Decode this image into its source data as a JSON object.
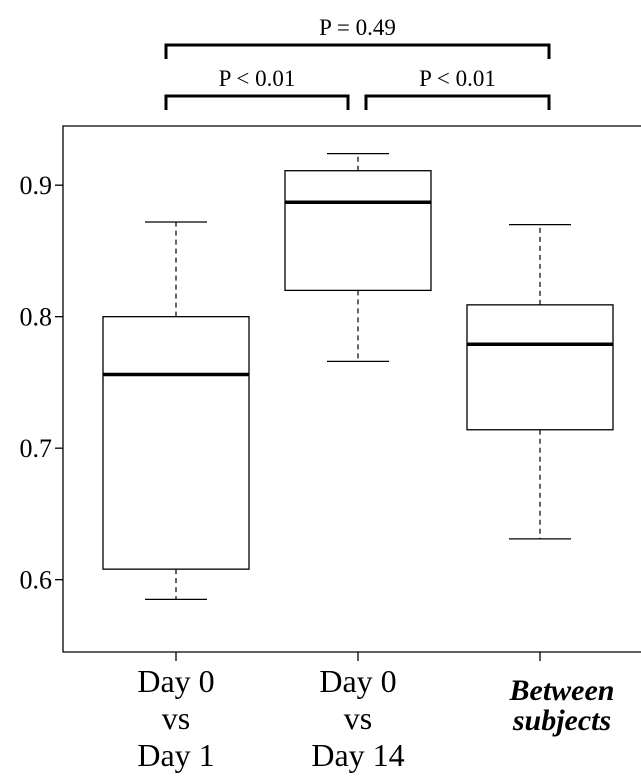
{
  "chart_data": {
    "type": "box",
    "title": "",
    "xlabel": "",
    "ylabel": "",
    "ylim": [
      0.545,
      0.945
    ],
    "yticks": [
      0.6,
      0.7,
      0.8,
      0.9
    ],
    "ytick_labels": [
      "0.6",
      "0.7",
      "0.8",
      "0.9"
    ],
    "grid": false,
    "categories": [
      {
        "lines": [
          "Day 0",
          "vs",
          "Day 1"
        ],
        "emphasis": false
      },
      {
        "lines": [
          "Day 0",
          "vs",
          "Day 14"
        ],
        "emphasis": false
      },
      {
        "lines": [
          "Between",
          "subjects"
        ],
        "emphasis": true
      }
    ],
    "boxes": [
      {
        "whisker_low": 0.585,
        "q1": 0.608,
        "median": 0.756,
        "q3": 0.8,
        "whisker_high": 0.872
      },
      {
        "whisker_low": 0.766,
        "q1": 0.82,
        "median": 0.887,
        "q3": 0.911,
        "whisker_high": 0.924
      },
      {
        "whisker_low": 0.631,
        "q1": 0.714,
        "median": 0.779,
        "q3": 0.809,
        "whisker_high": 0.87
      }
    ],
    "comparisons": [
      {
        "from": 0,
        "to": 1,
        "label": "P  < 0.01",
        "level": 1
      },
      {
        "from": 1,
        "to": 2,
        "label": "P  < 0.01",
        "level": 1
      },
      {
        "from": 0,
        "to": 2,
        "label": "P = 0.49",
        "level": 2
      }
    ]
  }
}
